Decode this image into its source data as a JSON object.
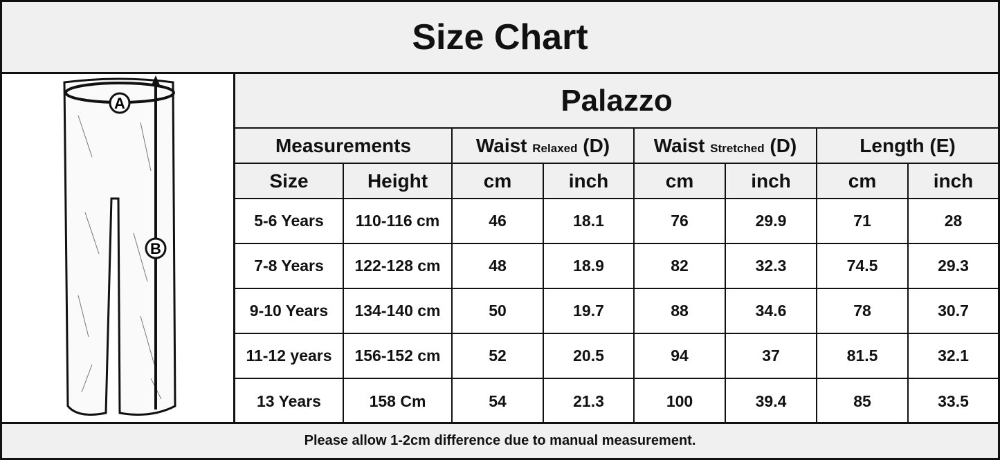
{
  "title": "Size Chart",
  "product": "Palazzo",
  "headers": {
    "measurements": "Measurements",
    "waist": "Waist",
    "relaxed": "Relaxed",
    "d": "(D)",
    "stretched": "Stretched",
    "length": "Length (E)",
    "size": "Size",
    "height": "Height",
    "cm": "cm",
    "inch": "inch"
  },
  "illustration": {
    "marker_a": "A",
    "marker_b": "B"
  },
  "rows": [
    [
      "5-6 Years",
      "110-116 cm",
      "46",
      "18.1",
      "76",
      "29.9",
      "71",
      "28"
    ],
    [
      "7-8 Years",
      "122-128 cm",
      "48",
      "18.9",
      "82",
      "32.3",
      "74.5",
      "29.3"
    ],
    [
      "9-10 Years",
      "134-140 cm",
      "50",
      "19.7",
      "88",
      "34.6",
      "78",
      "30.7"
    ],
    [
      "11-12 years",
      "156-152 cm",
      "52",
      "20.5",
      "94",
      "37",
      "81.5",
      "32.1"
    ],
    [
      "13 Years",
      "158 Cm",
      "54",
      "21.3",
      "100",
      "39.4",
      "85",
      "33.5"
    ]
  ],
  "footer": "Please allow 1-2cm difference due to manual measurement."
}
